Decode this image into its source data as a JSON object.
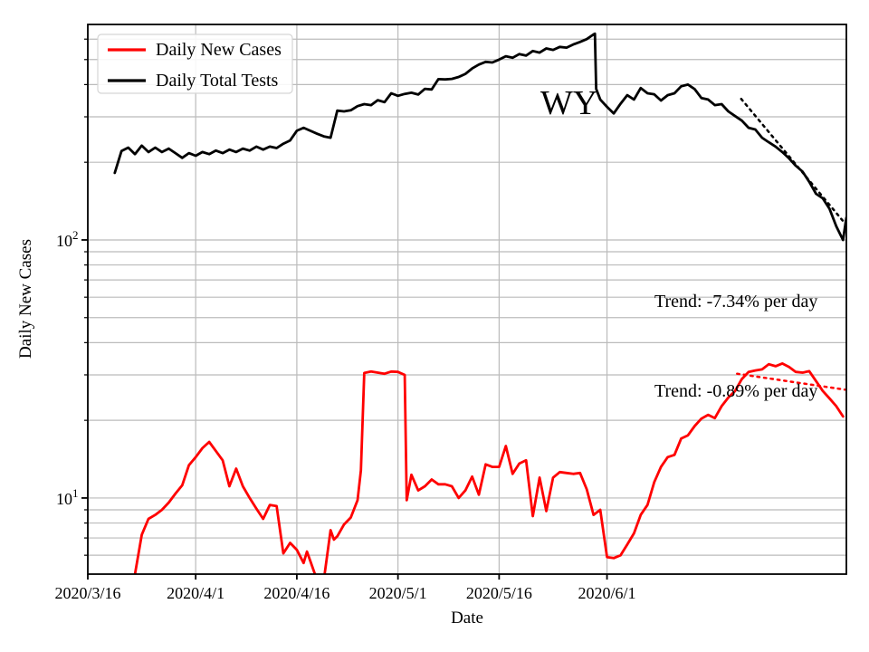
{
  "figure": {
    "background": "#ffffff",
    "ylabel": "Daily New Cases",
    "xlabel": "Date",
    "annotations": {
      "state": "WY",
      "trend_tests": "Trend: -7.34% per day",
      "trend_cases": "Trend: -0.89% per day"
    },
    "y_major_tick_labels": [
      {
        "base": "10",
        "exp": "2"
      },
      {
        "base": "10",
        "exp": "1"
      }
    ],
    "colors": {
      "cases": "#ff0000",
      "tests": "#000000",
      "grid": "#bbbbbb",
      "spine": "#000000",
      "legend_edge": "#d5d5d5"
    }
  },
  "chart_data": {
    "type": "line",
    "title": "",
    "xlabel": "Date",
    "ylabel": "Daily New Cases",
    "y_scale": "log",
    "x_unit": "days since 2020/3/16",
    "x_range_days": [
      0,
      112.5
    ],
    "y_range": [
      5.07,
      684
    ],
    "grid": true,
    "legend_position": "upper left",
    "xticks": [
      {
        "day": 0,
        "label": "2020/3/16"
      },
      {
        "day": 16,
        "label": "2020/4/1"
      },
      {
        "day": 31,
        "label": "2020/4/16"
      },
      {
        "day": 46,
        "label": "2020/5/1"
      },
      {
        "day": 61,
        "label": "2020/5/16"
      },
      {
        "day": 77,
        "label": "2020/6/1"
      }
    ],
    "yticks_major": [
      10,
      100
    ],
    "yticks_minor": [
      6,
      7,
      8,
      9,
      20,
      30,
      40,
      50,
      60,
      70,
      80,
      90,
      200,
      300,
      400,
      500,
      600
    ],
    "series": [
      {
        "name": "Daily New Cases",
        "color": "#ff0000",
        "style": "solid",
        "width": 2.8,
        "points": [
          [
            6.9,
            4.9
          ],
          [
            8,
            7.2
          ],
          [
            9,
            8.3
          ],
          [
            10,
            8.6
          ],
          [
            11,
            9.0
          ],
          [
            12,
            9.6
          ],
          [
            13,
            10.4
          ],
          [
            14,
            11.2
          ],
          [
            15,
            13.4
          ],
          [
            16,
            14.4
          ],
          [
            17,
            15.6
          ],
          [
            18,
            16.5
          ],
          [
            19,
            15.2
          ],
          [
            20,
            14.0
          ],
          [
            21,
            11.1
          ],
          [
            22,
            13.0
          ],
          [
            23,
            11.1
          ],
          [
            24,
            10.0
          ],
          [
            25,
            9.1
          ],
          [
            26,
            8.3
          ],
          [
            27,
            9.4
          ],
          [
            28,
            9.3
          ],
          [
            29,
            6.1
          ],
          [
            30,
            6.7
          ],
          [
            31,
            6.3
          ],
          [
            32,
            5.6
          ],
          [
            32.5,
            6.2
          ],
          [
            33,
            5.7
          ],
          [
            34,
            4.8
          ],
          [
            35,
            4.8
          ],
          [
            36,
            7.5
          ],
          [
            36.5,
            6.9
          ],
          [
            37,
            7.1
          ],
          [
            38,
            7.9
          ],
          [
            39,
            8.4
          ],
          [
            40,
            9.8
          ],
          [
            40.5,
            12.8
          ],
          [
            41,
            30.5
          ],
          [
            42,
            30.9
          ],
          [
            43,
            30.6
          ],
          [
            44,
            30.3
          ],
          [
            45,
            30.9
          ],
          [
            46,
            30.8
          ],
          [
            47,
            30.0
          ],
          [
            47.3,
            9.8
          ],
          [
            48,
            12.3
          ],
          [
            49,
            10.7
          ],
          [
            50,
            11.1
          ],
          [
            51,
            11.8
          ],
          [
            52,
            11.3
          ],
          [
            53,
            11.3
          ],
          [
            54,
            11.1
          ],
          [
            55,
            10.0
          ],
          [
            56,
            10.7
          ],
          [
            57,
            12.1
          ],
          [
            58,
            10.3
          ],
          [
            59,
            13.5
          ],
          [
            60,
            13.2
          ],
          [
            61,
            13.2
          ],
          [
            62,
            15.9
          ],
          [
            63,
            12.4
          ],
          [
            64,
            13.6
          ],
          [
            65,
            14.0
          ],
          [
            66,
            8.5
          ],
          [
            67,
            12.0
          ],
          [
            68,
            8.9
          ],
          [
            69,
            12.0
          ],
          [
            70,
            12.6
          ],
          [
            71,
            12.5
          ],
          [
            72,
            12.4
          ],
          [
            73,
            12.5
          ],
          [
            74,
            10.8
          ],
          [
            75,
            8.6
          ],
          [
            76,
            9.0
          ],
          [
            77,
            5.9
          ],
          [
            78,
            5.85
          ],
          [
            79,
            6.0
          ],
          [
            80,
            6.6
          ],
          [
            81,
            7.3
          ],
          [
            82,
            8.6
          ],
          [
            83,
            9.4
          ],
          [
            84,
            11.5
          ],
          [
            85,
            13.2
          ],
          [
            86,
            14.4
          ],
          [
            87,
            14.7
          ],
          [
            88,
            17.0
          ],
          [
            89,
            17.5
          ],
          [
            90,
            19.0
          ],
          [
            91,
            20.3
          ],
          [
            92,
            21.0
          ],
          [
            93,
            20.4
          ],
          [
            94,
            22.7
          ],
          [
            95,
            24.5
          ],
          [
            96,
            26.0
          ],
          [
            97,
            28.9
          ],
          [
            98,
            30.8
          ],
          [
            99,
            31.2
          ],
          [
            100,
            31.5
          ],
          [
            101,
            33.0
          ],
          [
            102,
            32.4
          ],
          [
            103,
            33.2
          ],
          [
            104,
            32.2
          ],
          [
            105,
            30.8
          ],
          [
            106,
            30.6
          ],
          [
            107,
            31.0
          ],
          [
            108,
            28.4
          ],
          [
            109,
            26.0
          ],
          [
            110,
            24.3
          ],
          [
            111,
            22.7
          ],
          [
            112,
            20.7
          ]
        ]
      },
      {
        "name": "Daily Total Tests",
        "color": "#000000",
        "style": "solid",
        "width": 2.8,
        "points": [
          [
            4,
            182
          ],
          [
            5,
            221
          ],
          [
            6,
            228
          ],
          [
            7,
            215
          ],
          [
            8,
            232
          ],
          [
            9,
            219
          ],
          [
            10,
            228
          ],
          [
            11,
            219
          ],
          [
            12,
            226
          ],
          [
            13,
            217
          ],
          [
            14,
            208
          ],
          [
            15,
            217
          ],
          [
            16,
            212
          ],
          [
            17,
            219
          ],
          [
            18,
            215
          ],
          [
            19,
            222
          ],
          [
            20,
            217
          ],
          [
            21,
            224
          ],
          [
            22,
            219
          ],
          [
            23,
            226
          ],
          [
            24,
            222
          ],
          [
            25,
            230
          ],
          [
            26,
            224
          ],
          [
            27,
            230
          ],
          [
            28,
            227
          ],
          [
            29,
            236
          ],
          [
            30,
            243
          ],
          [
            31,
            265
          ],
          [
            32,
            272
          ],
          [
            33,
            265
          ],
          [
            34,
            258
          ],
          [
            35,
            252
          ],
          [
            36,
            249
          ],
          [
            37,
            317
          ],
          [
            38,
            315
          ],
          [
            39,
            318
          ],
          [
            40,
            330
          ],
          [
            41,
            336
          ],
          [
            42,
            333
          ],
          [
            43,
            348
          ],
          [
            44,
            342
          ],
          [
            45,
            370
          ],
          [
            46,
            362
          ],
          [
            47,
            368
          ],
          [
            48,
            372
          ],
          [
            49,
            366
          ],
          [
            50,
            385
          ],
          [
            51,
            383
          ],
          [
            52,
            420
          ],
          [
            53,
            419
          ],
          [
            54,
            421
          ],
          [
            55,
            428
          ],
          [
            56,
            440
          ],
          [
            57,
            462
          ],
          [
            58,
            478
          ],
          [
            59,
            490
          ],
          [
            60,
            487
          ],
          [
            61,
            500
          ],
          [
            62,
            515
          ],
          [
            63,
            508
          ],
          [
            64,
            525
          ],
          [
            65,
            518
          ],
          [
            66,
            540
          ],
          [
            67,
            532
          ],
          [
            68,
            552
          ],
          [
            69,
            545
          ],
          [
            70,
            560
          ],
          [
            71,
            556
          ],
          [
            72,
            572
          ],
          [
            73,
            585
          ],
          [
            74,
            600
          ],
          [
            75,
            626
          ],
          [
            75.2,
            630
          ],
          [
            75.4,
            385
          ],
          [
            76,
            350
          ],
          [
            77,
            328
          ],
          [
            78,
            309
          ],
          [
            79,
            337
          ],
          [
            80,
            364
          ],
          [
            81,
            350
          ],
          [
            82,
            388
          ],
          [
            83,
            370
          ],
          [
            84,
            367
          ],
          [
            85,
            347
          ],
          [
            86,
            364
          ],
          [
            87,
            370
          ],
          [
            88,
            394
          ],
          [
            89,
            400
          ],
          [
            90,
            384
          ],
          [
            91,
            355
          ],
          [
            92,
            350
          ],
          [
            93,
            333
          ],
          [
            94,
            336
          ],
          [
            95,
            315
          ],
          [
            96,
            302
          ],
          [
            97,
            290
          ],
          [
            98,
            272
          ],
          [
            99,
            268
          ],
          [
            100,
            249
          ],
          [
            101,
            239
          ],
          [
            102,
            230
          ],
          [
            103,
            219
          ],
          [
            104,
            207
          ],
          [
            105,
            194
          ],
          [
            106,
            184
          ],
          [
            107,
            168
          ],
          [
            108,
            151
          ],
          [
            109,
            145
          ],
          [
            110,
            132
          ],
          [
            111,
            113
          ],
          [
            112,
            100
          ],
          [
            112.5,
            122
          ]
        ]
      },
      {
        "name": "Tests trend -7.34% per day",
        "color": "#000000",
        "style": "dotted",
        "width": 2.5,
        "points": [
          [
            96.9,
            352
          ],
          [
            112.4,
            115
          ]
        ]
      },
      {
        "name": "Cases trend -0.89% per day",
        "color": "#ff0000",
        "style": "dotted",
        "width": 2.5,
        "points": [
          [
            96.3,
            30.3
          ],
          [
            112.3,
            26.3
          ]
        ]
      }
    ]
  }
}
